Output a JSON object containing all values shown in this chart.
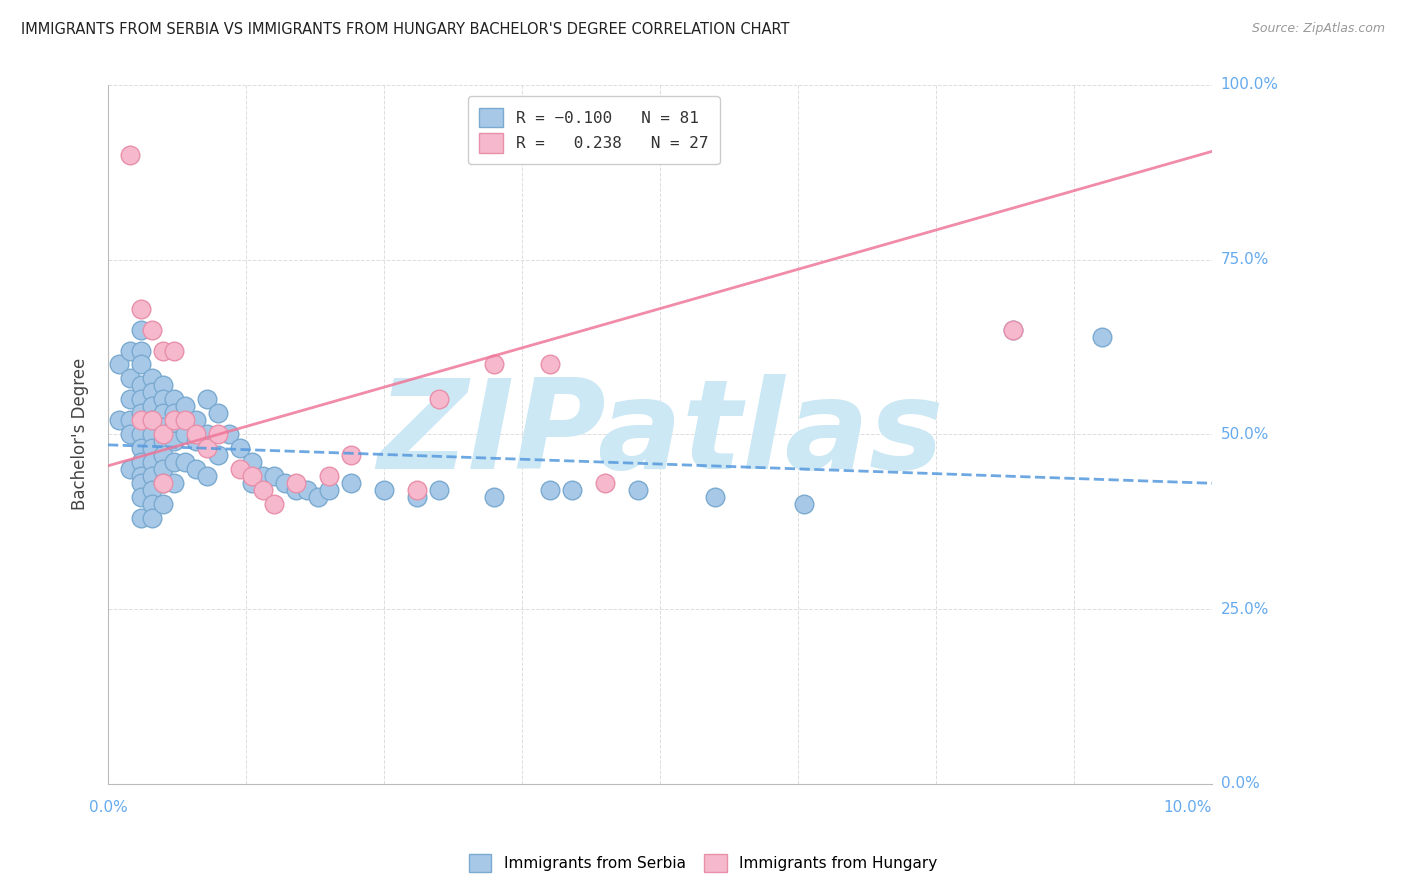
{
  "title": "IMMIGRANTS FROM SERBIA VS IMMIGRANTS FROM HUNGARY BACHELOR'S DEGREE CORRELATION CHART",
  "source": "Source: ZipAtlas.com",
  "ylabel": "Bachelor's Degree",
  "ylabel_ticks_labels": [
    "0.0%",
    "25.0%",
    "50.0%",
    "75.0%",
    "100.0%"
  ],
  "ylabel_ticks_vals": [
    0.0,
    0.25,
    0.5,
    0.75,
    1.0
  ],
  "serbia_color": "#a8c8e8",
  "serbia_edge": "#7aaad0",
  "hungary_color": "#f5b8cc",
  "hungary_edge": "#e890aa",
  "serbia_line_color": "#5599dd",
  "hungary_line_color": "#ee7799",
  "background_color": "#ffffff",
  "watermark_text": "ZIPatlas",
  "watermark_color": "#cce8f4",
  "tick_color": "#66aaee",
  "grid_color": "#dddddd",
  "serbia_x": [
    0.001,
    0.001,
    0.002,
    0.002,
    0.002,
    0.002,
    0.002,
    0.002,
    0.003,
    0.003,
    0.003,
    0.003,
    0.003,
    0.003,
    0.003,
    0.003,
    0.003,
    0.003,
    0.003,
    0.003,
    0.003,
    0.004,
    0.004,
    0.004,
    0.004,
    0.004,
    0.004,
    0.004,
    0.004,
    0.004,
    0.004,
    0.004,
    0.005,
    0.005,
    0.005,
    0.005,
    0.005,
    0.005,
    0.005,
    0.005,
    0.005,
    0.006,
    0.006,
    0.006,
    0.006,
    0.006,
    0.006,
    0.007,
    0.007,
    0.007,
    0.008,
    0.008,
    0.008,
    0.009,
    0.009,
    0.009,
    0.01,
    0.01,
    0.011,
    0.012,
    0.013,
    0.013,
    0.014,
    0.015,
    0.016,
    0.017,
    0.018,
    0.019,
    0.02,
    0.022,
    0.025,
    0.028,
    0.03,
    0.035,
    0.04,
    0.042,
    0.048,
    0.055,
    0.063,
    0.082,
    0.09
  ],
  "serbia_y": [
    0.6,
    0.52,
    0.62,
    0.58,
    0.55,
    0.52,
    0.5,
    0.45,
    0.65,
    0.62,
    0.6,
    0.57,
    0.55,
    0.53,
    0.5,
    0.48,
    0.46,
    0.44,
    0.43,
    0.41,
    0.38,
    0.58,
    0.56,
    0.54,
    0.52,
    0.5,
    0.48,
    0.46,
    0.44,
    0.42,
    0.4,
    0.38,
    0.57,
    0.55,
    0.53,
    0.51,
    0.49,
    0.47,
    0.45,
    0.43,
    0.4,
    0.55,
    0.53,
    0.51,
    0.49,
    0.46,
    0.43,
    0.54,
    0.5,
    0.46,
    0.52,
    0.49,
    0.45,
    0.55,
    0.5,
    0.44,
    0.53,
    0.47,
    0.5,
    0.48,
    0.46,
    0.43,
    0.44,
    0.44,
    0.43,
    0.42,
    0.42,
    0.41,
    0.42,
    0.43,
    0.42,
    0.41,
    0.42,
    0.41,
    0.42,
    0.42,
    0.42,
    0.41,
    0.4,
    0.65,
    0.64
  ],
  "hungary_x": [
    0.002,
    0.003,
    0.003,
    0.004,
    0.004,
    0.005,
    0.005,
    0.005,
    0.006,
    0.006,
    0.007,
    0.008,
    0.009,
    0.01,
    0.012,
    0.013,
    0.014,
    0.015,
    0.017,
    0.02,
    0.022,
    0.028,
    0.03,
    0.035,
    0.04,
    0.045,
    0.082
  ],
  "hungary_y": [
    0.9,
    0.68,
    0.52,
    0.65,
    0.52,
    0.62,
    0.5,
    0.43,
    0.62,
    0.52,
    0.52,
    0.5,
    0.48,
    0.5,
    0.45,
    0.44,
    0.42,
    0.4,
    0.43,
    0.44,
    0.47,
    0.42,
    0.55,
    0.6,
    0.6,
    0.43,
    0.65
  ]
}
